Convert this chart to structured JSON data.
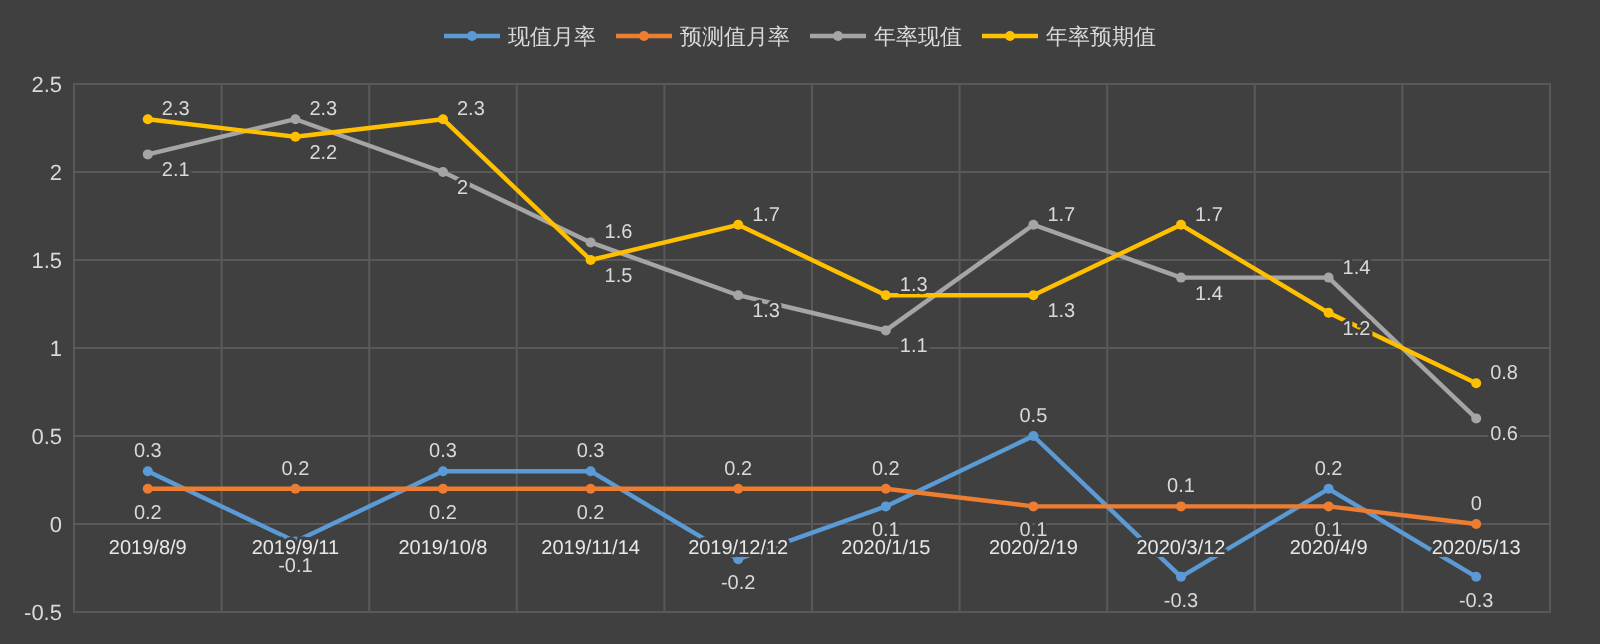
{
  "chart_data": {
    "type": "line",
    "categories": [
      "2019/8/9",
      "2019/9/11",
      "2019/10/8",
      "2019/11/14",
      "2019/12/12",
      "2020/1/15",
      "2020/2/19",
      "2020/3/12",
      "2020/4/9",
      "2020/5/13"
    ],
    "series": [
      {
        "name": "现值月率",
        "color": "#5b9bd5",
        "values": [
          0.3,
          -0.1,
          0.3,
          0.3,
          -0.2,
          0.1,
          0.5,
          -0.3,
          0.2,
          -0.3
        ]
      },
      {
        "name": "预测值月率",
        "color": "#ed7d31",
        "values": [
          0.2,
          0.2,
          0.2,
          0.2,
          0.2,
          0.2,
          0.1,
          0.1,
          0.1,
          0
        ]
      },
      {
        "name": "年率现值",
        "color": "#a5a5a5",
        "values": [
          2.1,
          2.3,
          2,
          1.6,
          1.3,
          1.1,
          1.7,
          1.4,
          1.4,
          0.6
        ]
      },
      {
        "name": "年率预期值",
        "color": "#ffc000",
        "values": [
          2.3,
          2.2,
          2.3,
          1.5,
          1.7,
          1.3,
          1.3,
          1.7,
          1.2,
          0.8
        ]
      }
    ],
    "ylim": [
      -0.5,
      2.5
    ],
    "yticks": [
      -0.5,
      0,
      0.5,
      1,
      1.5,
      2,
      2.5
    ],
    "grid": true,
    "legend": "top",
    "marker": "circle",
    "line_style": "solid",
    "data_labels": true
  }
}
